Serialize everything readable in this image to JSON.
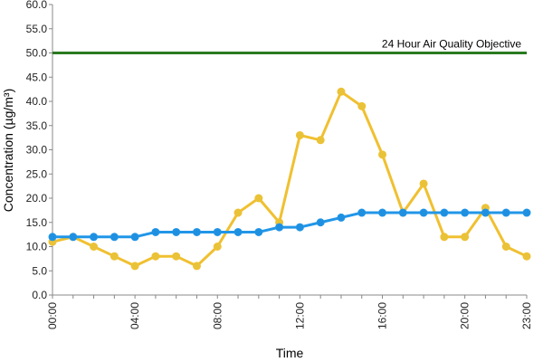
{
  "chart_data": {
    "type": "line",
    "xlabel": "Time",
    "ylabel": "Concentration (µg/m³)",
    "ylim": [
      0,
      60
    ],
    "yticks": [
      "0.0",
      "5.0",
      "10.0",
      "15.0",
      "20.0",
      "25.0",
      "30.0",
      "35.0",
      "40.0",
      "45.0",
      "50.0",
      "55.0",
      "60.0"
    ],
    "x": [
      "00:00",
      "01:00",
      "02:00",
      "03:00",
      "04:00",
      "05:00",
      "06:00",
      "07:00",
      "08:00",
      "09:00",
      "10:00",
      "11:00",
      "12:00",
      "13:00",
      "14:00",
      "15:00",
      "16:00",
      "17:00",
      "18:00",
      "19:00",
      "20:00",
      "21:00",
      "22:00",
      "23:00"
    ],
    "xtick_labels": [
      "00:00",
      "04:00",
      "08:00",
      "12:00",
      "16:00",
      "20:00",
      "23:00"
    ],
    "grid": false,
    "series": [
      {
        "color": "#f0c030",
        "marker_fill": "#e8c33a",
        "values": [
          11,
          12,
          10,
          8,
          6,
          8,
          8,
          6,
          10,
          17,
          20,
          15,
          33,
          32,
          42,
          39,
          29,
          17,
          23,
          12,
          12,
          18,
          10,
          8
        ]
      },
      {
        "color": "#2196e8",
        "marker_fill": "#1f8fe0",
        "values": [
          12,
          12,
          12,
          12,
          12,
          13,
          13,
          13,
          13,
          13,
          13,
          14,
          14,
          15,
          16,
          17,
          17,
          17,
          17,
          17,
          17,
          17,
          17,
          17
        ]
      }
    ],
    "reference_line": {
      "value": 50,
      "label": "24 Hour Air Quality Objective",
      "color": "#2a7a1f"
    }
  }
}
